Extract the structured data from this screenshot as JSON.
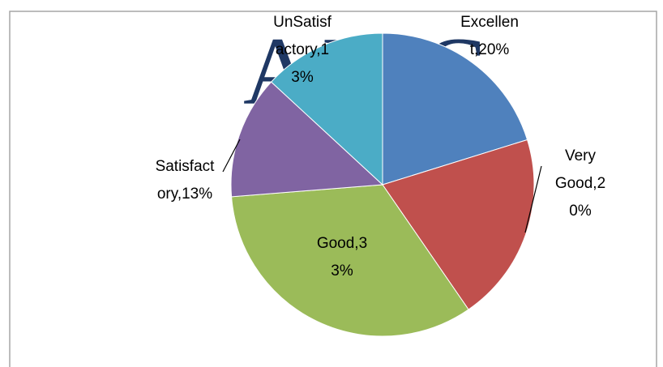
{
  "watermark": "AJAC",
  "chart_data": {
    "type": "pie",
    "categories": [
      "Excellent",
      "Very Good",
      "Good",
      "Satisfactory",
      "UnSatisfactory"
    ],
    "values": [
      20,
      20,
      33,
      13,
      13
    ],
    "value_labels": [
      "Excellent,20%",
      "Very Good,20%",
      "Good,33%",
      "Satisfactory,13%",
      "UnSatisfactory,13%"
    ],
    "colors": [
      "#4f81bd",
      "#c0504d",
      "#9bbb59",
      "#8064a2",
      "#4bacc6"
    ]
  }
}
